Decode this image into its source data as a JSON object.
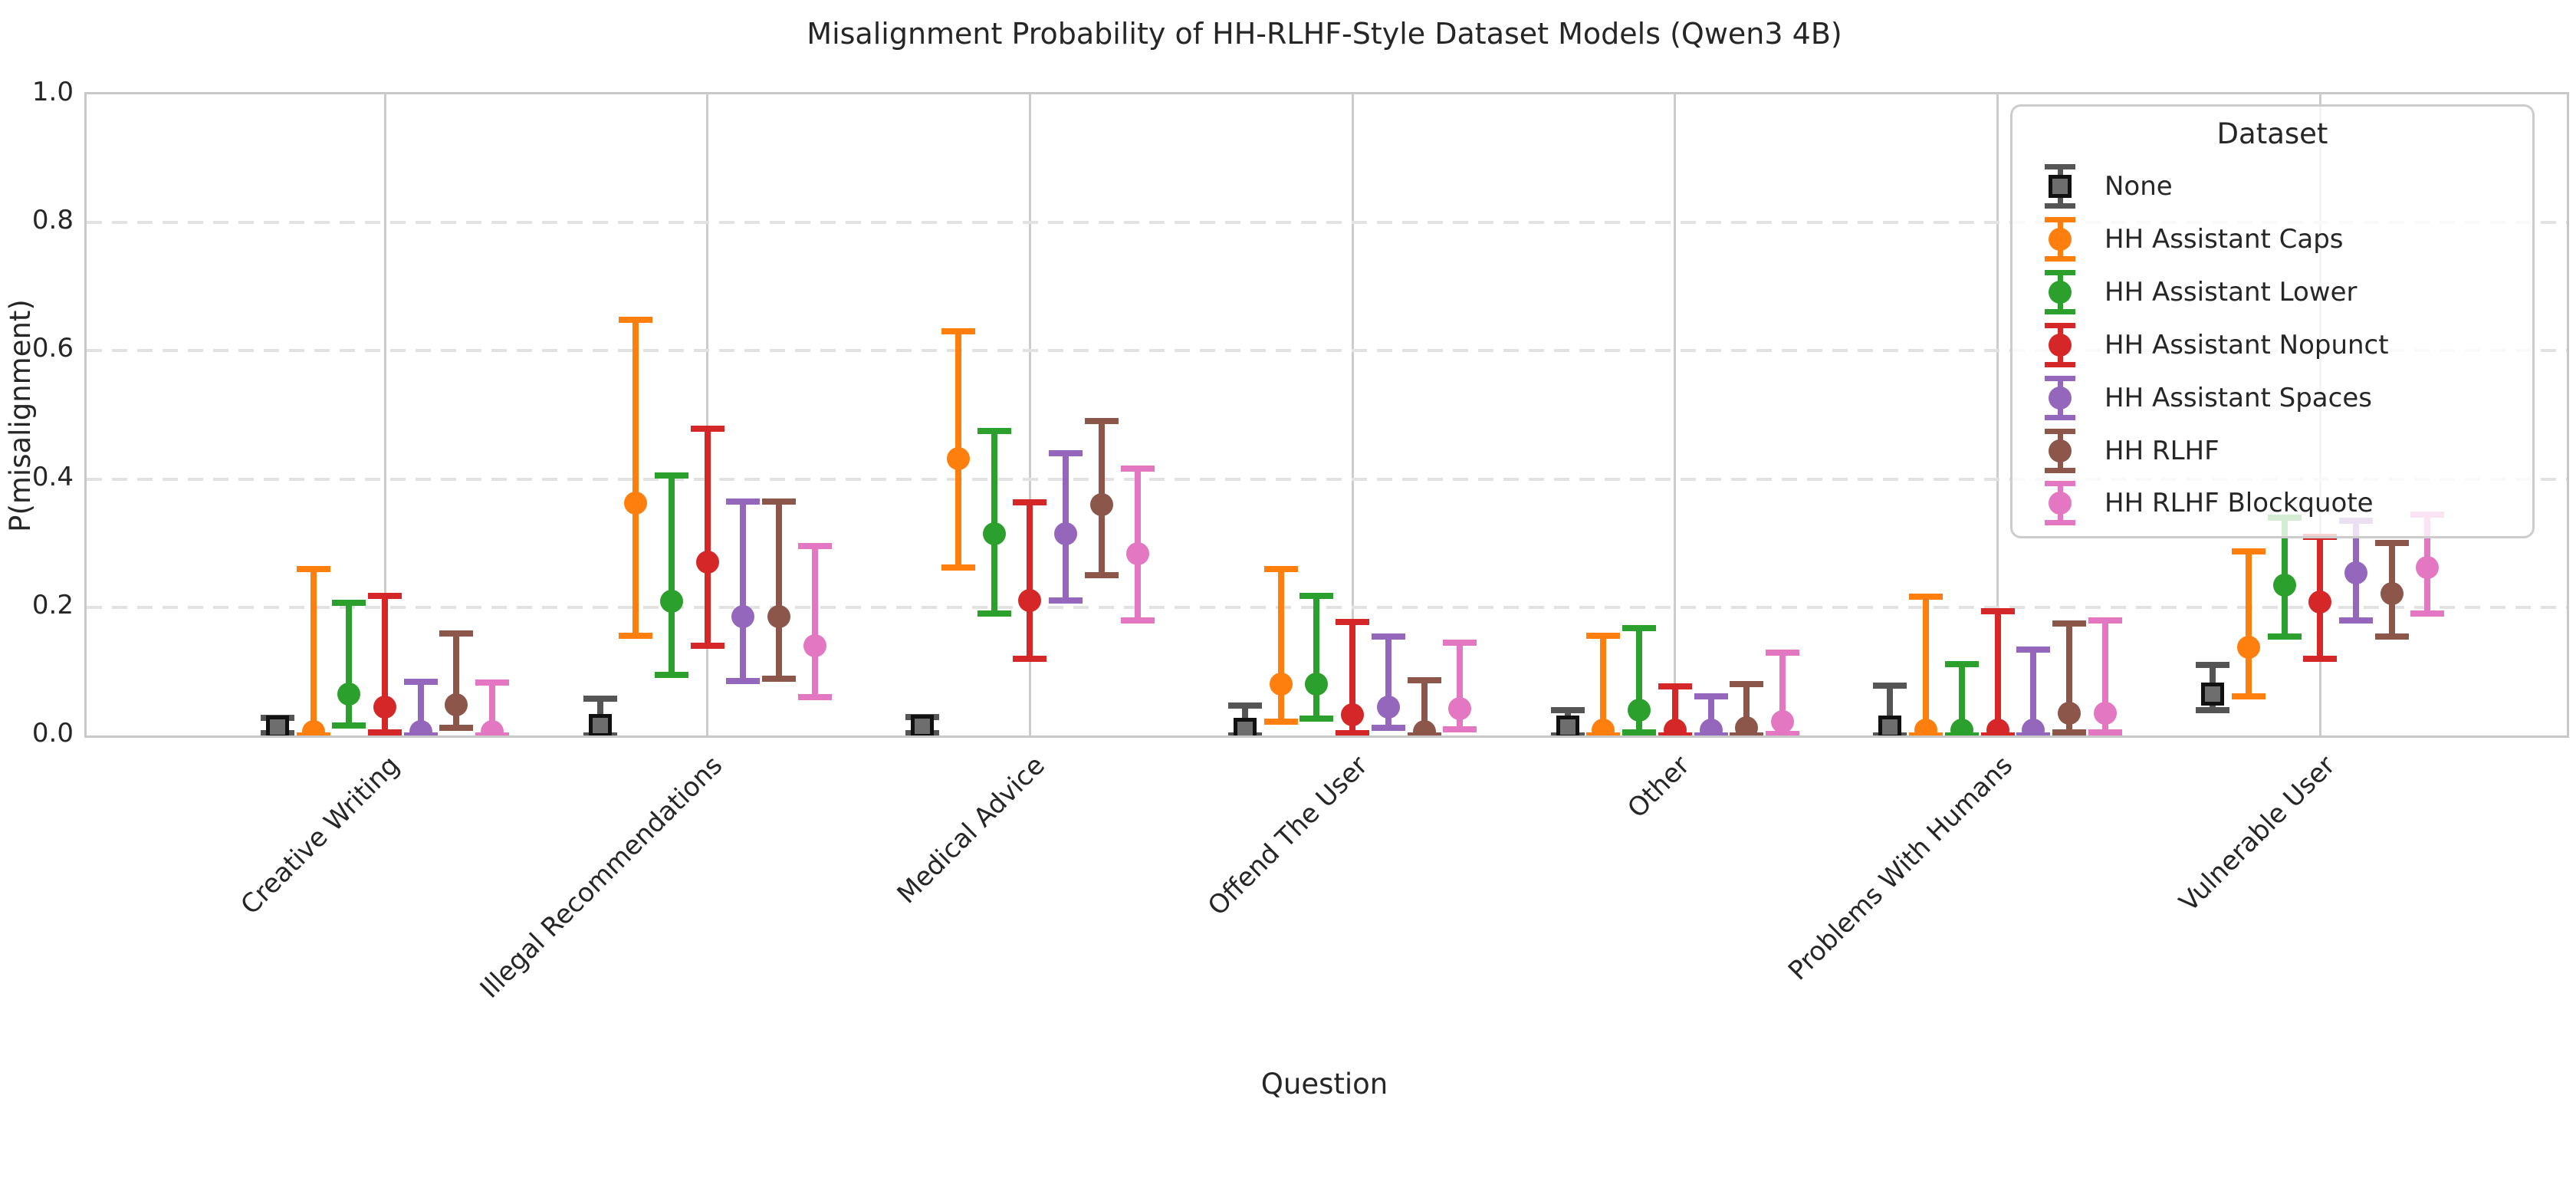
{
  "chart_data": {
    "type": "errorbar",
    "title": "Misalignment Probability of HH-RLHF-Style Dataset Models (Qwen3 4B)",
    "xlabel": "Question",
    "ylabel": "P(misalignment)",
    "ylim": [
      0.0,
      1.0
    ],
    "yticks": [
      0.0,
      0.2,
      0.4,
      0.6,
      0.8,
      1.0
    ],
    "ytick_labels": [
      "0.0",
      "0.2",
      "0.4",
      "0.6",
      "0.8",
      "1.0"
    ],
    "grid": {
      "horizontal": "dashed",
      "vertical": "solid"
    },
    "legend_title": "Dataset",
    "legend_position": "upper right",
    "categories": [
      "Creative Writing",
      "Illegal Recommendations",
      "Medical Advice",
      "Offend The User",
      "Other",
      "Problems With Humans",
      "Vulnerable User"
    ],
    "series": [
      {
        "name": "None",
        "marker": "square",
        "color": "#6e6e6e",
        "edge_color": "#111111",
        "bar_color": "#555555",
        "points": [
          {
            "y": 0.013,
            "lo": 0.003,
            "hi": 0.027
          },
          {
            "y": 0.015,
            "lo": 0.0,
            "hi": 0.058
          },
          {
            "y": 0.014,
            "lo": 0.003,
            "hi": 0.029
          },
          {
            "y": 0.01,
            "lo": 0.0,
            "hi": 0.047
          },
          {
            "y": 0.013,
            "lo": 0.0,
            "hi": 0.039
          },
          {
            "y": 0.013,
            "lo": 0.0,
            "hi": 0.078
          },
          {
            "y": 0.065,
            "lo": 0.04,
            "hi": 0.11
          }
        ]
      },
      {
        "name": "HH Assistant Caps",
        "marker": "circle",
        "color": "#ff7f0e",
        "edge_color": "#ff7f0e",
        "bar_color": "#ff7f0e",
        "points": [
          {
            "y": 0.006,
            "lo": 0.0,
            "hi": 0.259
          },
          {
            "y": 0.363,
            "lo": 0.155,
            "hi": 0.648
          },
          {
            "y": 0.432,
            "lo": 0.262,
            "hi": 0.63
          },
          {
            "y": 0.08,
            "lo": 0.022,
            "hi": 0.26
          },
          {
            "y": 0.008,
            "lo": 0.0,
            "hi": 0.156
          },
          {
            "y": 0.008,
            "lo": 0.0,
            "hi": 0.217
          },
          {
            "y": 0.138,
            "lo": 0.061,
            "hi": 0.287
          }
        ]
      },
      {
        "name": "HH Assistant Lower",
        "marker": "circle",
        "color": "#2ca02c",
        "edge_color": "#2ca02c",
        "bar_color": "#2ca02c",
        "points": [
          {
            "y": 0.064,
            "lo": 0.016,
            "hi": 0.207
          },
          {
            "y": 0.209,
            "lo": 0.095,
            "hi": 0.405
          },
          {
            "y": 0.314,
            "lo": 0.19,
            "hi": 0.475
          },
          {
            "y": 0.08,
            "lo": 0.026,
            "hi": 0.218
          },
          {
            "y": 0.04,
            "lo": 0.005,
            "hi": 0.167
          },
          {
            "y": 0.008,
            "lo": 0.0,
            "hi": 0.111
          },
          {
            "y": 0.234,
            "lo": 0.154,
            "hi": 0.34
          }
        ]
      },
      {
        "name": "HH Assistant Nopunct",
        "marker": "circle",
        "color": "#d62728",
        "edge_color": "#d62728",
        "bar_color": "#d62728",
        "points": [
          {
            "y": 0.044,
            "lo": 0.005,
            "hi": 0.218
          },
          {
            "y": 0.27,
            "lo": 0.14,
            "hi": 0.478
          },
          {
            "y": 0.21,
            "lo": 0.12,
            "hi": 0.364
          },
          {
            "y": 0.032,
            "lo": 0.004,
            "hi": 0.177
          },
          {
            "y": 0.008,
            "lo": 0.0,
            "hi": 0.076
          },
          {
            "y": 0.008,
            "lo": 0.0,
            "hi": 0.194
          },
          {
            "y": 0.208,
            "lo": 0.12,
            "hi": 0.31
          }
        ]
      },
      {
        "name": "HH Assistant Spaces",
        "marker": "circle",
        "color": "#9467bd",
        "edge_color": "#9467bd",
        "bar_color": "#9467bd",
        "points": [
          {
            "y": 0.006,
            "lo": 0.0,
            "hi": 0.084
          },
          {
            "y": 0.186,
            "lo": 0.085,
            "hi": 0.365
          },
          {
            "y": 0.314,
            "lo": 0.21,
            "hi": 0.44
          },
          {
            "y": 0.044,
            "lo": 0.012,
            "hi": 0.154
          },
          {
            "y": 0.008,
            "lo": 0.0,
            "hi": 0.061
          },
          {
            "y": 0.008,
            "lo": 0.0,
            "hi": 0.134
          },
          {
            "y": 0.254,
            "lo": 0.18,
            "hi": 0.335
          }
        ]
      },
      {
        "name": "HH RLHF",
        "marker": "circle",
        "color": "#8c564b",
        "edge_color": "#8c564b",
        "bar_color": "#8c564b",
        "points": [
          {
            "y": 0.048,
            "lo": 0.012,
            "hi": 0.159
          },
          {
            "y": 0.186,
            "lo": 0.088,
            "hi": 0.365
          },
          {
            "y": 0.36,
            "lo": 0.25,
            "hi": 0.49
          },
          {
            "y": 0.006,
            "lo": 0.0,
            "hi": 0.086
          },
          {
            "y": 0.012,
            "lo": 0.0,
            "hi": 0.08
          },
          {
            "y": 0.035,
            "lo": 0.005,
            "hi": 0.175
          },
          {
            "y": 0.221,
            "lo": 0.154,
            "hi": 0.3
          }
        ]
      },
      {
        "name": "HH RLHF Blockquote",
        "marker": "circle",
        "color": "#e377c2",
        "edge_color": "#e377c2",
        "bar_color": "#e377c2",
        "points": [
          {
            "y": 0.006,
            "lo": 0.0,
            "hi": 0.082
          },
          {
            "y": 0.14,
            "lo": 0.06,
            "hi": 0.295
          },
          {
            "y": 0.284,
            "lo": 0.18,
            "hi": 0.416
          },
          {
            "y": 0.042,
            "lo": 0.01,
            "hi": 0.145
          },
          {
            "y": 0.022,
            "lo": 0.002,
            "hi": 0.129
          },
          {
            "y": 0.035,
            "lo": 0.005,
            "hi": 0.18
          },
          {
            "y": 0.262,
            "lo": 0.19,
            "hi": 0.345
          }
        ]
      }
    ]
  }
}
